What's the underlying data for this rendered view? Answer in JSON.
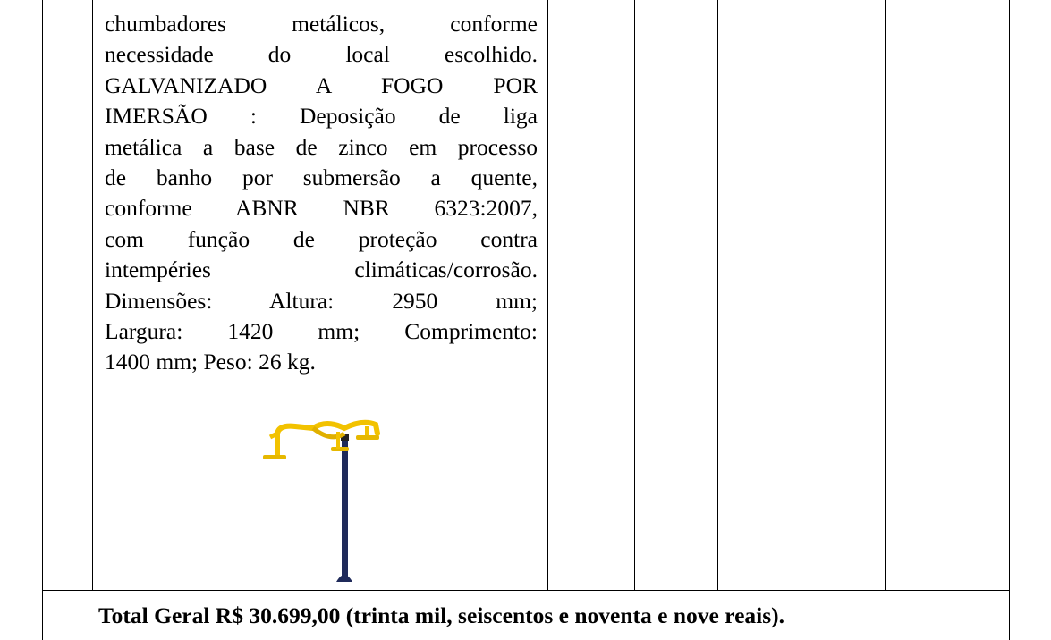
{
  "description": {
    "lines": [
      "chumbadores metálicos, conforme",
      "necessidade do local escolhido.",
      "GALVANIZADO A FOGO POR",
      "IMERSÃO : Deposição de liga",
      "metálica a base de zinco em processo",
      "de banho por submersão a quente,",
      "conforme ABNR NBR 6323:2007,",
      "com função de proteção contra",
      "intempéries climáticas/corrosão.",
      "Dimensões: Altura: 2950 mm;",
      "Largura: 1420 mm; Comprimento:",
      "1400 mm; Peso: 26 kg."
    ]
  },
  "total": "Total Geral R$ 30.699,00 (trinta mil, seiscentos e noventa e nove reais)."
}
